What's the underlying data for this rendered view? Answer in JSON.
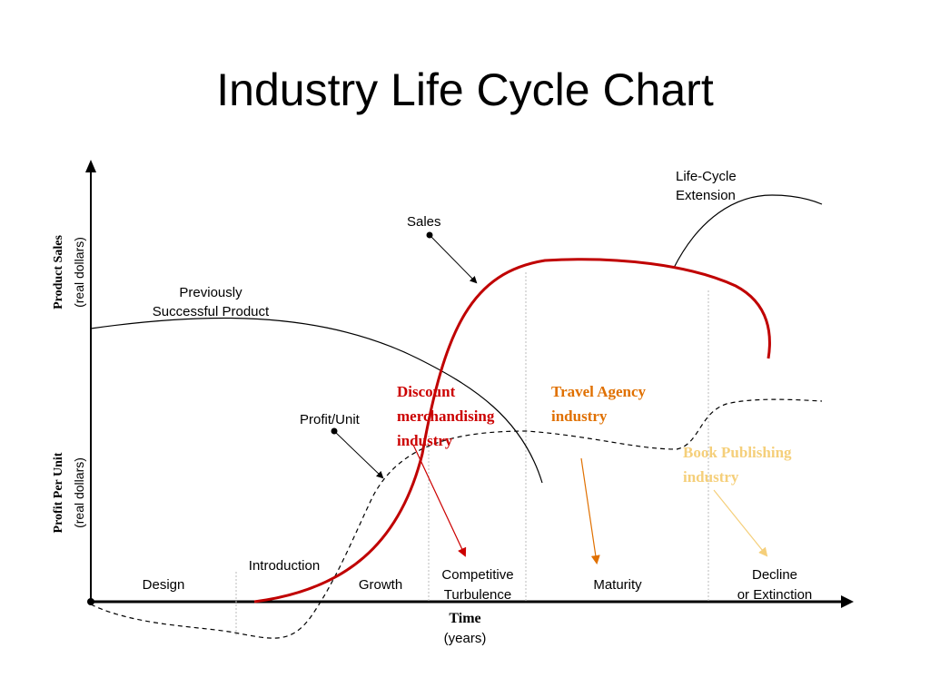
{
  "title": "Industry Life Cycle Chart",
  "axes": {
    "y_upper_label": "Product Sales",
    "y_upper_sub": "(real dollars)",
    "y_lower_label": "Profit Per Unit",
    "y_lower_sub": "(real dollars)",
    "x_label": "Time",
    "x_sub": "(years)"
  },
  "curve_labels": {
    "sales": "Sales",
    "previous_product_line1": "Previously",
    "previous_product_line2": "Successful Product",
    "profit_unit": "Profit/Unit",
    "extension_line1": "Life-Cycle",
    "extension_line2": "Extension"
  },
  "stages": [
    {
      "line1": "Design",
      "line2": ""
    },
    {
      "line1": "Introduction",
      "line2": ""
    },
    {
      "line1": "Growth",
      "line2": ""
    },
    {
      "line1": "Competitive",
      "line2": "Turbulence"
    },
    {
      "line1": "Maturity",
      "line2": ""
    },
    {
      "line1": "Decline",
      "line2": "or Extinction"
    }
  ],
  "annotations": {
    "discount": {
      "lines": [
        "Discount",
        "merchandising",
        "industry"
      ],
      "color": "#cc0000"
    },
    "travel": {
      "lines": [
        "Travel Agency",
        "industry"
      ],
      "color": "#e07000"
    },
    "book": {
      "lines": [
        "Book Publishing",
        "industry"
      ],
      "color": "#f5cf7a"
    }
  },
  "colors": {
    "sales_curve": "#c00000",
    "ink": "#000000"
  }
}
